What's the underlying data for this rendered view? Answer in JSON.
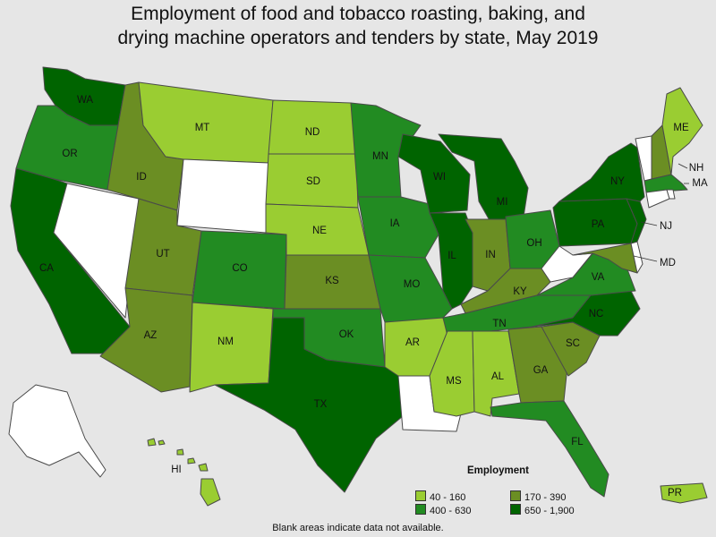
{
  "title_line1": "Employment of food and tobacco roasting, baking, and",
  "title_line2": "drying machine operators and tenders by state, May 2019",
  "legend": {
    "title": "Employment",
    "items": [
      {
        "label": "40 - 160",
        "color": "#9acd32"
      },
      {
        "label": "170 - 390",
        "color": "#6b8e23"
      },
      {
        "label": "400 - 630",
        "color": "#228b22"
      },
      {
        "label": "650 - 1,900",
        "color": "#006400"
      }
    ]
  },
  "footnote": "Blank areas indicate data not available.",
  "colors": {
    "no_data": "#ffffff",
    "border": "#4a4a4a",
    "background": "#e6e6e6"
  },
  "chart_data": {
    "type": "choropleth",
    "bins": [
      "40 - 160",
      "170 - 390",
      "400 - 630",
      "650 - 1,900"
    ],
    "states": {
      "WA": "650 - 1,900",
      "OR": "400 - 630",
      "CA": "650 - 1,900",
      "ID": "170 - 390",
      "MT": "40 - 160",
      "UT": "170 - 390",
      "AZ": "170 - 390",
      "CO": "400 - 630",
      "NM": "40 - 160",
      "ND": "40 - 160",
      "SD": "40 - 160",
      "NE": "40 - 160",
      "KS": "170 - 390",
      "OK": "400 - 630",
      "TX": "650 - 1,900",
      "MN": "400 - 630",
      "IA": "400 - 630",
      "MO": "400 - 630",
      "AR": "40 - 160",
      "WI": "650 - 1,900",
      "IL": "650 - 1,900",
      "MI": "650 - 1,900",
      "IN": "170 - 390",
      "OH": "400 - 630",
      "KY": "170 - 390",
      "TN": "400 - 630",
      "MS": "40 - 160",
      "AL": "40 - 160",
      "GA": "170 - 390",
      "FL": "400 - 630",
      "SC": "170 - 390",
      "NC": "650 - 1,900",
      "VA": "400 - 630",
      "PA": "650 - 1,900",
      "NY": "650 - 1,900",
      "NJ": "650 - 1,900",
      "MD": "170 - 390",
      "ME": "40 - 160",
      "NH": "170 - 390",
      "MA": "400 - 630",
      "HI": "40 - 160",
      "PR": "40 - 160",
      "NV": null,
      "WY": null,
      "LA": null,
      "WV": null,
      "VT": null,
      "CT": null,
      "RI": null,
      "DE": null,
      "AK": null
    },
    "labels": [
      "WA",
      "OR",
      "CA",
      "ID",
      "MT",
      "UT",
      "AZ",
      "CO",
      "NM",
      "ND",
      "SD",
      "NE",
      "KS",
      "OK",
      "TX",
      "MN",
      "IA",
      "MO",
      "AR",
      "WI",
      "IL",
      "MI",
      "IN",
      "OH",
      "KY",
      "TN",
      "MS",
      "AL",
      "GA",
      "FL",
      "SC",
      "NC",
      "VA",
      "PA",
      "NY",
      "NJ",
      "MD",
      "ME",
      "NH",
      "MA",
      "HI",
      "PR"
    ]
  }
}
